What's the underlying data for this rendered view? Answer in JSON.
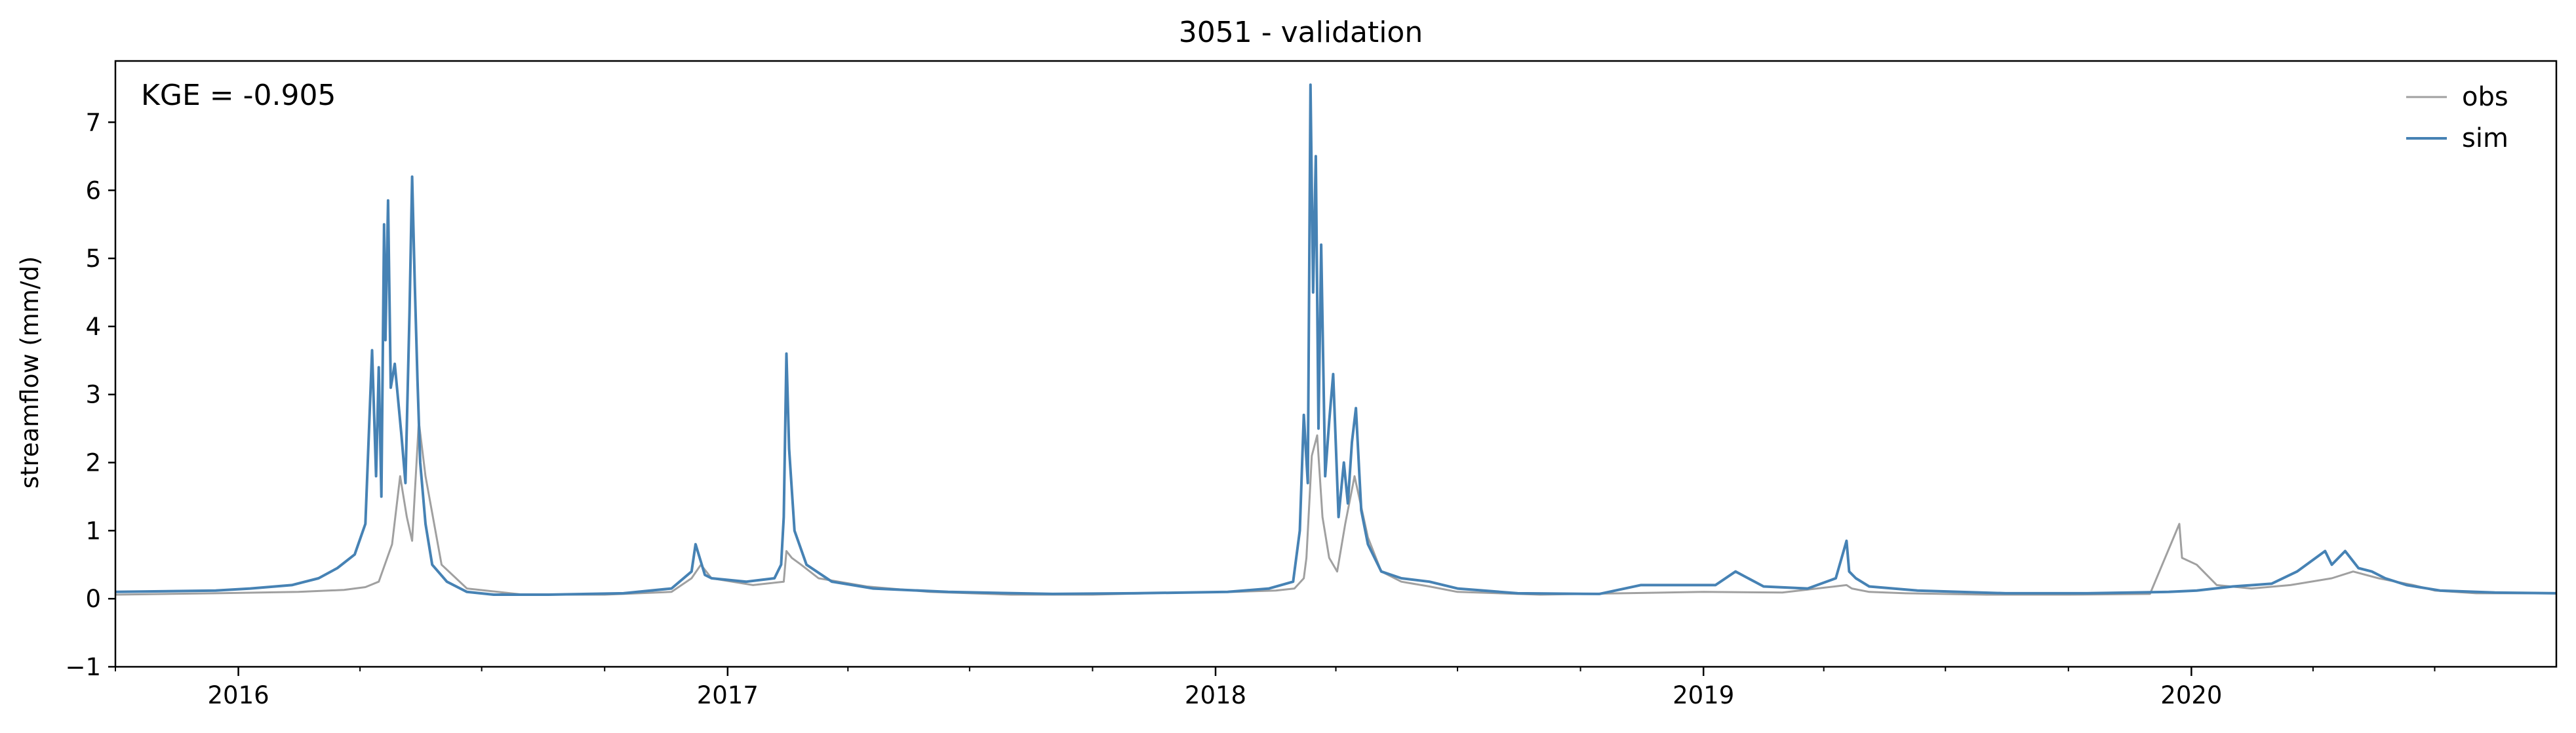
{
  "chart_data": {
    "type": "line",
    "title": "3051 - validation",
    "xlabel": "",
    "ylabel": "streamflow (mm/d)",
    "annotation": "KGE = -0.905",
    "x_range": [
      "2015-10-01",
      "2020-09-30"
    ],
    "ylim": [
      -1,
      7.9
    ],
    "y_ticks": [
      -1,
      0,
      1,
      2,
      3,
      4,
      5,
      6,
      7
    ],
    "y_tick_labels": [
      "−1",
      "0",
      "1",
      "2",
      "3",
      "4",
      "5",
      "6",
      "7"
    ],
    "x_ticks": [
      "2016-01-01",
      "2017-01-01",
      "2018-01-01",
      "2019-01-01",
      "2020-01-01"
    ],
    "x_tick_labels": [
      "2016",
      "2017",
      "2018",
      "2019",
      "2020"
    ],
    "grid": false,
    "legend": {
      "placement": "top-right",
      "entries": [
        "obs",
        "sim"
      ]
    },
    "colors": {
      "obs": "#a0a0a0",
      "sim": "#4682b4"
    },
    "series": [
      {
        "name": "obs",
        "x": [
          "2015-10-01",
          "2015-12-15",
          "2016-02-15",
          "2016-03-20",
          "2016-04-05",
          "2016-04-15",
          "2016-04-25",
          "2016-05-01",
          "2016-05-06",
          "2016-05-10",
          "2016-05-15",
          "2016-05-20",
          "2016-06-01",
          "2016-06-20",
          "2016-08-01",
          "2016-10-01",
          "2016-11-20",
          "2016-12-05",
          "2016-12-12",
          "2016-12-20",
          "2017-01-20",
          "2017-02-12",
          "2017-02-14",
          "2017-02-18",
          "2017-02-25",
          "2017-03-10",
          "2017-04-15",
          "2017-06-01",
          "2017-08-01",
          "2017-10-01",
          "2017-12-01",
          "2018-01-15",
          "2018-02-15",
          "2018-03-01",
          "2018-03-08",
          "2018-03-10",
          "2018-03-14",
          "2018-03-18",
          "2018-03-22",
          "2018-03-27",
          "2018-04-02",
          "2018-04-08",
          "2018-04-15",
          "2018-04-25",
          "2018-05-05",
          "2018-05-20",
          "2018-06-10",
          "2018-07-01",
          "2018-09-01",
          "2018-11-01",
          "2019-01-01",
          "2019-03-01",
          "2019-04-18",
          "2019-04-22",
          "2019-05-05",
          "2019-06-01",
          "2019-08-01",
          "2019-10-01",
          "2019-12-01",
          "2019-12-23",
          "2019-12-25",
          "2020-01-05",
          "2020-01-20",
          "2020-02-15",
          "2020-03-15",
          "2020-04-15",
          "2020-05-01",
          "2020-05-20",
          "2020-06-15",
          "2020-07-01",
          "2020-08-01",
          "2020-09-30"
        ],
        "values": [
          0.06,
          0.08,
          0.1,
          0.13,
          0.17,
          0.25,
          0.8,
          1.8,
          1.2,
          0.85,
          2.6,
          1.8,
          0.5,
          0.15,
          0.06,
          0.06,
          0.1,
          0.3,
          0.5,
          0.3,
          0.2,
          0.25,
          0.7,
          0.6,
          0.5,
          0.3,
          0.18,
          0.1,
          0.06,
          0.06,
          0.09,
          0.1,
          0.12,
          0.15,
          0.3,
          0.6,
          2.1,
          2.4,
          1.2,
          0.6,
          0.4,
          1.1,
          1.8,
          0.9,
          0.4,
          0.25,
          0.18,
          0.1,
          0.06,
          0.08,
          0.1,
          0.09,
          0.2,
          0.15,
          0.1,
          0.08,
          0.06,
          0.06,
          0.07,
          1.1,
          0.6,
          0.5,
          0.2,
          0.15,
          0.2,
          0.3,
          0.4,
          0.3,
          0.2,
          0.12,
          0.08,
          0.08
        ]
      },
      {
        "name": "sim",
        "x": [
          "2015-10-01",
          "2015-12-15",
          "2016-01-10",
          "2016-02-10",
          "2016-03-01",
          "2016-03-15",
          "2016-03-28",
          "2016-04-05",
          "2016-04-10",
          "2016-04-13",
          "2016-04-15",
          "2016-04-17",
          "2016-04-19",
          "2016-04-20",
          "2016-04-22",
          "2016-04-24",
          "2016-04-27",
          "2016-05-02",
          "2016-05-05",
          "2016-05-08",
          "2016-05-10",
          "2016-05-12",
          "2016-05-14",
          "2016-05-16",
          "2016-05-20",
          "2016-05-25",
          "2016-06-05",
          "2016-06-20",
          "2016-07-10",
          "2016-08-20",
          "2016-10-15",
          "2016-11-20",
          "2016-12-05",
          "2016-12-08",
          "2016-12-15",
          "2016-12-20",
          "2017-01-15",
          "2017-02-05",
          "2017-02-10",
          "2017-02-12",
          "2017-02-14",
          "2017-02-16",
          "2017-02-20",
          "2017-03-01",
          "2017-03-20",
          "2017-04-20",
          "2017-06-15",
          "2017-09-01",
          "2017-11-01",
          "2018-01-10",
          "2018-02-10",
          "2018-02-28",
          "2018-03-05",
          "2018-03-08",
          "2018-03-11",
          "2018-03-13",
          "2018-03-15",
          "2018-03-17",
          "2018-03-19",
          "2018-03-21",
          "2018-03-24",
          "2018-03-27",
          "2018-03-30",
          "2018-04-03",
          "2018-04-07",
          "2018-04-10",
          "2018-04-13",
          "2018-04-16",
          "2018-04-20",
          "2018-04-25",
          "2018-05-05",
          "2018-05-20",
          "2018-06-10",
          "2018-07-01",
          "2018-08-15",
          "2018-10-15",
          "2018-11-15",
          "2019-01-10",
          "2019-01-25",
          "2019-02-15",
          "2019-03-20",
          "2019-04-10",
          "2019-04-18",
          "2019-04-20",
          "2019-04-25",
          "2019-05-05",
          "2019-06-10",
          "2019-08-15",
          "2019-10-15",
          "2019-12-15",
          "2020-01-05",
          "2020-02-01",
          "2020-03-01",
          "2020-03-20",
          "2020-04-10",
          "2020-04-15",
          "2020-04-25",
          "2020-05-05",
          "2020-05-15",
          "2020-05-25",
          "2020-06-10",
          "2020-07-05",
          "2020-08-15",
          "2020-09-30"
        ],
        "values": [
          0.1,
          0.12,
          0.15,
          0.2,
          0.3,
          0.45,
          0.65,
          1.1,
          3.65,
          1.8,
          3.4,
          1.5,
          5.5,
          3.8,
          5.85,
          3.1,
          3.45,
          2.4,
          1.7,
          4.2,
          6.2,
          4.6,
          3.2,
          2.0,
          1.1,
          0.5,
          0.25,
          0.1,
          0.06,
          0.06,
          0.08,
          0.15,
          0.4,
          0.8,
          0.35,
          0.3,
          0.25,
          0.3,
          0.5,
          1.2,
          3.6,
          2.2,
          1.0,
          0.5,
          0.25,
          0.15,
          0.1,
          0.07,
          0.08,
          0.1,
          0.15,
          0.25,
          1.0,
          2.7,
          1.7,
          7.55,
          4.5,
          6.5,
          2.5,
          5.2,
          1.8,
          2.6,
          3.3,
          1.2,
          2.0,
          1.4,
          2.3,
          2.8,
          1.3,
          0.8,
          0.4,
          0.3,
          0.25,
          0.15,
          0.08,
          0.07,
          0.2,
          0.2,
          0.4,
          0.18,
          0.15,
          0.3,
          0.85,
          0.4,
          0.3,
          0.18,
          0.12,
          0.08,
          0.08,
          0.1,
          0.12,
          0.18,
          0.22,
          0.4,
          0.7,
          0.5,
          0.7,
          0.45,
          0.4,
          0.3,
          0.2,
          0.12,
          0.09,
          0.08
        ]
      }
    ]
  }
}
